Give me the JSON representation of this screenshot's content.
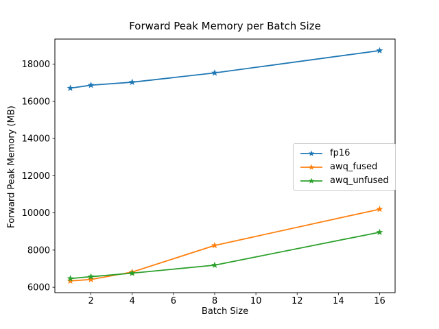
{
  "chart_data": {
    "type": "line",
    "title": "Forward Peak Memory per Batch Size",
    "xlabel": "Batch Size",
    "ylabel": "Forward Peak Memory (MB)",
    "x": [
      1,
      2,
      4,
      8,
      16
    ],
    "series": [
      {
        "name": "fp16",
        "color": "#1f77b4",
        "values": [
          16710,
          16870,
          17030,
          17530,
          18730
        ]
      },
      {
        "name": "awq_fused",
        "color": "#ff7f0e",
        "values": [
          6340,
          6420,
          6820,
          8250,
          10200
        ]
      },
      {
        "name": "awq_unfused",
        "color": "#2ca02c",
        "values": [
          6470,
          6570,
          6760,
          7190,
          8960
        ]
      }
    ],
    "marker": "star",
    "line_width": 1.8,
    "xlim": [
      0.25,
      16.75
    ],
    "ylim": [
      5710,
      19350
    ],
    "xticks": [
      2,
      4,
      6,
      8,
      10,
      12,
      14,
      16
    ],
    "yticks": [
      6000,
      8000,
      10000,
      12000,
      14000,
      16000,
      18000
    ],
    "grid": false,
    "legend_position": "center-right",
    "axis_color": "#000000",
    "background_color": "#ffffff"
  }
}
